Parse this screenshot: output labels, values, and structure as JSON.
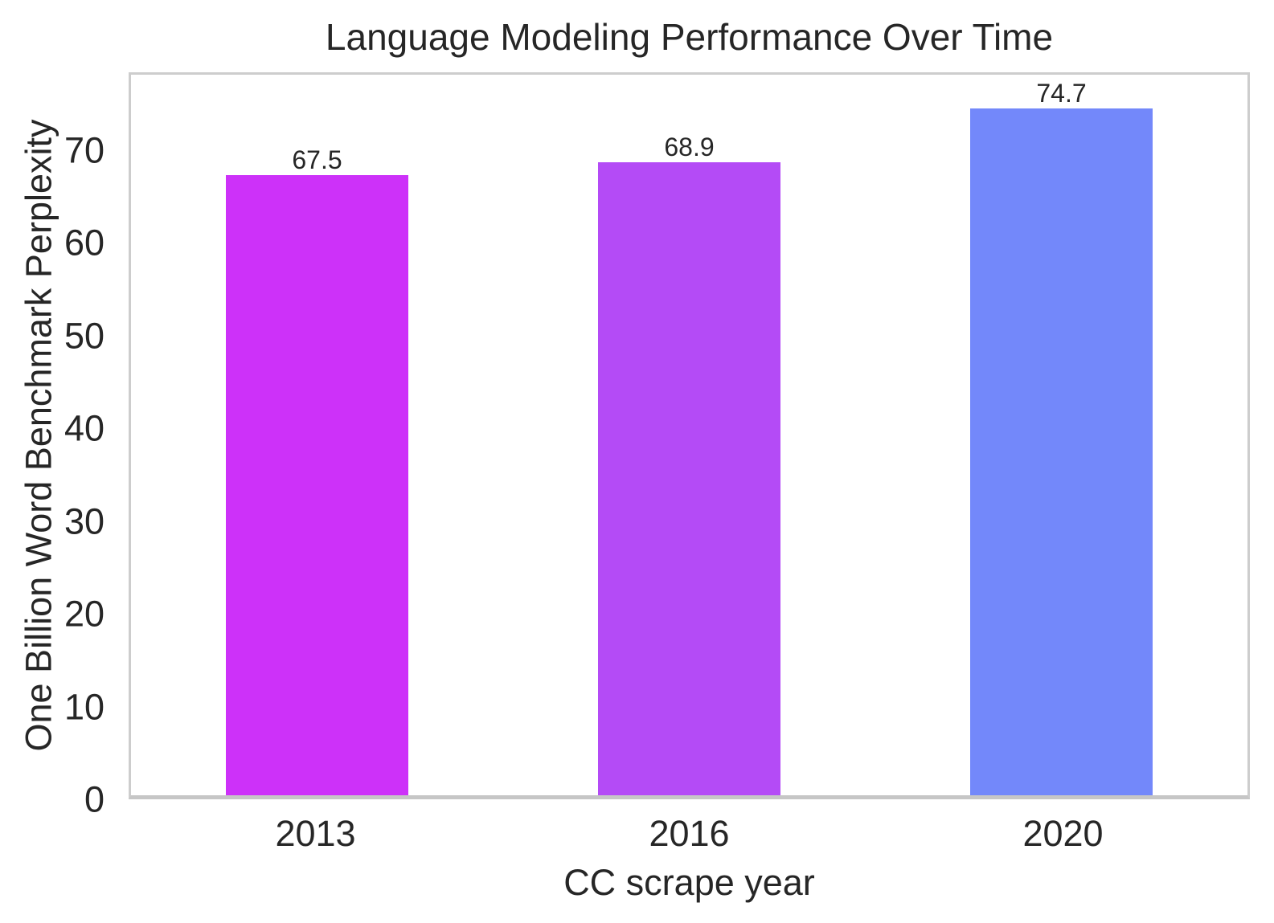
{
  "chart_data": {
    "type": "bar",
    "title": "Language Modeling Performance Over Time",
    "xlabel": "CC scrape year",
    "ylabel": "One Billion Word Benchmark Perplexity",
    "categories": [
      "2013",
      "2016",
      "2020"
    ],
    "values": [
      67.5,
      68.9,
      74.7
    ],
    "bar_labels": [
      "67.5",
      "68.9",
      "74.7"
    ],
    "bar_colors": [
      "#cd31f9",
      "#b44bf6",
      "#7388fa"
    ],
    "ylim": [
      0,
      78.4
    ],
    "yticks": [
      0,
      10,
      20,
      30,
      40,
      50,
      60,
      70
    ],
    "grid": false,
    "legend_position": "none",
    "text_color": "#262626",
    "spine_color": "#cdcdcd",
    "bar_width_fraction": 0.49
  }
}
